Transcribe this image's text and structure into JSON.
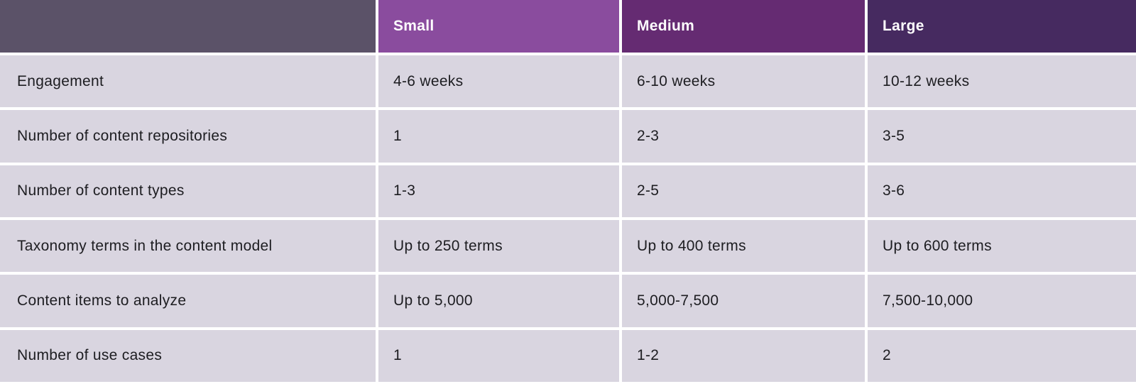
{
  "chart_data": {
    "type": "table",
    "title": "",
    "columns": [
      "",
      "Small",
      "Medium",
      "Large"
    ],
    "rows": [
      [
        "Engagement",
        "4-6 weeks",
        "6-10 weeks",
        "10-12 weeks"
      ],
      [
        "Number of content repositories",
        "1",
        "2-3",
        "3-5"
      ],
      [
        "Number of content types",
        "1-3",
        "2-5",
        "3-6"
      ],
      [
        "Taxonomy terms in the content model",
        "Up to 250 terms",
        "Up to 400 terms",
        "Up to 600 terms"
      ],
      [
        "Content items to analyze",
        "Up to 5,000",
        "5,000-7,500",
        "7,500-10,000"
      ],
      [
        "Number of use cases",
        "1",
        "1-2",
        "2"
      ]
    ]
  },
  "colors": {
    "header_blank_bg": "#5b5268",
    "header_small_bg": "#8a4c9e",
    "header_medium_bg": "#652b72",
    "header_large_bg": "#462a60",
    "body_cell_bg": "#d9d5e0",
    "gap": "#ffffff",
    "header_text": "#ffffff",
    "body_text": "#1d1d21"
  }
}
